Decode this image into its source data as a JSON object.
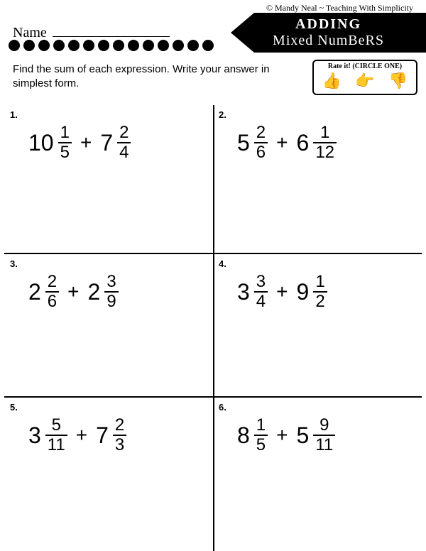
{
  "copyright": "© Mandy Neal ~ Teaching With Simplicity",
  "name_label": "Name",
  "title_line1": "ADDING",
  "title_line2": "Mixed NumBeRS",
  "instructions": "Find the sum of each expression. Write your answer in simplest form.",
  "rate_label": "Rate it! (CIRCLE ONE)",
  "dot_count": 14,
  "problems": [
    {
      "n": "1.",
      "a_whole": "10",
      "a_num": "1",
      "a_den": "5",
      "b_whole": "7",
      "b_num": "2",
      "b_den": "4"
    },
    {
      "n": "2.",
      "a_whole": "5",
      "a_num": "2",
      "a_den": "6",
      "b_whole": "6",
      "b_num": "1",
      "b_den": "12"
    },
    {
      "n": "3.",
      "a_whole": "2",
      "a_num": "2",
      "a_den": "6",
      "b_whole": "2",
      "b_num": "3",
      "b_den": "9"
    },
    {
      "n": "4.",
      "a_whole": "3",
      "a_num": "3",
      "a_den": "4",
      "b_whole": "9",
      "b_num": "1",
      "b_den": "2"
    },
    {
      "n": "5.",
      "a_whole": "3",
      "a_num": "5",
      "a_den": "11",
      "b_whole": "7",
      "b_num": "2",
      "b_den": "3"
    },
    {
      "n": "6.",
      "a_whole": "8",
      "a_num": "1",
      "a_den": "5",
      "b_whole": "5",
      "b_num": "9",
      "b_den": "11"
    }
  ]
}
